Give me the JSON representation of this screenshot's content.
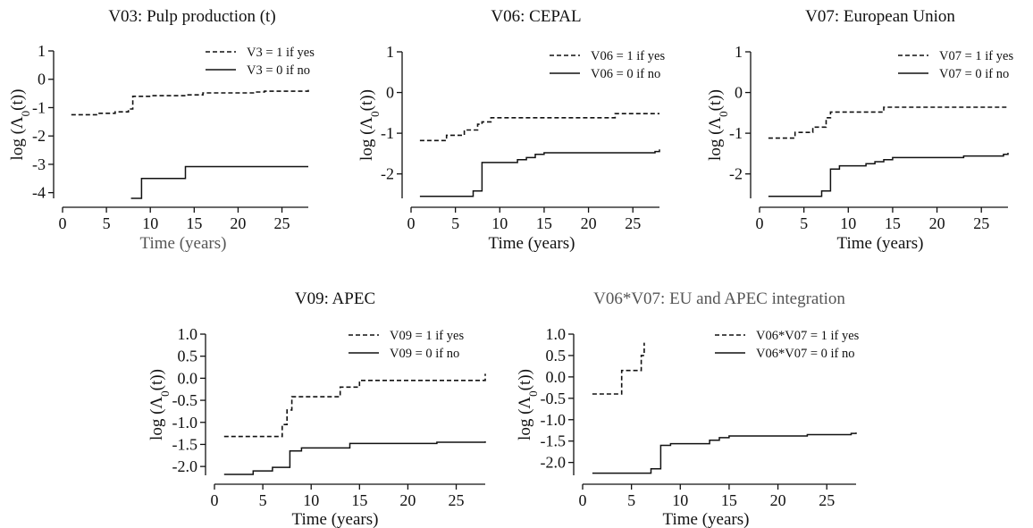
{
  "chart_data": [
    {
      "type": "line",
      "title": "V03: Pulp production (t)",
      "xlabel": "Time (years)",
      "ylabel": "log (Λ0(t))",
      "xlim": [
        0,
        28
      ],
      "ylim": [
        -4.2,
        1
      ],
      "x_ticks": [
        "0",
        "5",
        "10",
        "15",
        "20",
        "25"
      ],
      "y_ticks": [
        "1",
        "0",
        "-1",
        "-2",
        "-3",
        "-4"
      ],
      "legend_position": "top-right",
      "series": [
        {
          "name": "V3 = 1 if yes",
          "style": "dashed",
          "x": [
            1,
            4,
            6,
            7.5,
            8,
            10,
            14,
            16,
            22,
            23,
            28
          ],
          "y": [
            -1.25,
            -1.2,
            -1.15,
            -1.05,
            -0.6,
            -0.58,
            -0.55,
            -0.48,
            -0.45,
            -0.42,
            -0.36
          ]
        },
        {
          "name": "V3 = 0 if no",
          "style": "solid",
          "x": [
            7.8,
            9,
            14,
            28
          ],
          "y": [
            -4.2,
            -3.5,
            -3.08,
            -3.08
          ]
        }
      ]
    },
    {
      "type": "line",
      "title": "V06: CEPAL",
      "xlabel": "Time (years)",
      "ylabel": "log (Λ0(t))",
      "xlim": [
        0,
        28
      ],
      "ylim": [
        -2.6,
        1
      ],
      "x_ticks": [
        "0",
        "5",
        "10",
        "15",
        "20",
        "25"
      ],
      "y_ticks": [
        "1",
        "0",
        "-1",
        "-2"
      ],
      "legend_position": "top-right",
      "series": [
        {
          "name": "V06 = 1 if yes",
          "style": "dashed",
          "x": [
            1,
            4,
            6,
            7.5,
            8,
            9,
            10,
            14,
            23,
            28
          ],
          "y": [
            -1.18,
            -1.05,
            -0.92,
            -0.78,
            -0.72,
            -0.62,
            -0.62,
            -0.62,
            -0.52,
            -0.52
          ]
        },
        {
          "name": "V06 = 0 if no",
          "style": "solid",
          "x": [
            1,
            7,
            8,
            12,
            13,
            14,
            15,
            27.5,
            28
          ],
          "y": [
            -2.55,
            -2.42,
            -1.72,
            -1.65,
            -1.6,
            -1.52,
            -1.48,
            -1.45,
            -1.4
          ]
        }
      ]
    },
    {
      "type": "line",
      "title": "V07: European Union",
      "xlabel": "Time (years)",
      "ylabel": "log (Λ0(t))",
      "xlim": [
        0,
        28
      ],
      "ylim": [
        -2.6,
        1
      ],
      "x_ticks": [
        "0",
        "5",
        "10",
        "15",
        "20",
        "25"
      ],
      "y_ticks": [
        "1",
        "0",
        "-1",
        "-2"
      ],
      "legend_position": "top-right",
      "series": [
        {
          "name": "V07 = 1 if yes",
          "style": "dashed",
          "x": [
            1,
            4,
            6,
            7.5,
            8,
            14,
            28
          ],
          "y": [
            -1.12,
            -0.98,
            -0.85,
            -0.62,
            -0.48,
            -0.36,
            -0.36
          ]
        },
        {
          "name": "V07 = 0 if no",
          "style": "solid",
          "x": [
            1,
            7,
            8,
            9,
            12,
            13,
            14,
            15,
            23,
            27.5,
            28
          ],
          "y": [
            -2.55,
            -2.42,
            -1.88,
            -1.8,
            -1.75,
            -1.7,
            -1.65,
            -1.6,
            -1.56,
            -1.52,
            -1.48
          ]
        }
      ]
    },
    {
      "type": "line",
      "title": "V09: APEC",
      "xlabel": "Time (years)",
      "ylabel": "log (Λ0(t))",
      "xlim": [
        0,
        28
      ],
      "ylim": [
        -2.2,
        1.0
      ],
      "x_ticks": [
        "0",
        "5",
        "10",
        "15",
        "20",
        "25"
      ],
      "y_ticks": [
        "1.0",
        "0.5",
        "0.0",
        "-0.5",
        "-1.0",
        "-1.5",
        "-2.0"
      ],
      "legend_position": "top-right",
      "series": [
        {
          "name": "V09 = 1 if yes",
          "style": "dashed",
          "x": [
            1,
            7,
            7.5,
            8,
            13,
            15,
            28
          ],
          "y": [
            -1.32,
            -1.05,
            -0.72,
            -0.42,
            -0.2,
            -0.05,
            0.1
          ]
        },
        {
          "name": "V09 = 0 if no",
          "style": "solid",
          "x": [
            1,
            4,
            6,
            7.8,
            9,
            14,
            23,
            28
          ],
          "y": [
            -2.18,
            -2.1,
            -2.02,
            -1.65,
            -1.58,
            -1.48,
            -1.45,
            -1.43
          ]
        }
      ]
    },
    {
      "type": "line",
      "title": "V06*V07: EU and APEC integration",
      "xlabel": "Time (years)",
      "ylabel": "log (Λ0(t))",
      "xlim": [
        0,
        28
      ],
      "ylim": [
        -2.3,
        1.0
      ],
      "x_ticks": [
        "0",
        "5",
        "10",
        "15",
        "20",
        "25"
      ],
      "y_ticks": [
        "1.0",
        "0.5",
        "0.0",
        "-0.5",
        "-1.0",
        "-1.5",
        "-2.0"
      ],
      "legend_position": "top-right",
      "series": [
        {
          "name": "V06*V07 = 1 if yes",
          "style": "dashed",
          "x": [
            1,
            4,
            6,
            6.3
          ],
          "y": [
            -0.4,
            0.15,
            0.5,
            0.8
          ]
        },
        {
          "name": "V06*V07 = 0 if no",
          "style": "solid",
          "x": [
            1,
            7,
            8,
            9,
            13,
            14,
            15,
            23,
            27.5,
            28
          ],
          "y": [
            -2.25,
            -2.15,
            -1.6,
            -1.56,
            -1.48,
            -1.42,
            -1.38,
            -1.35,
            -1.32,
            -1.3
          ]
        }
      ]
    }
  ]
}
